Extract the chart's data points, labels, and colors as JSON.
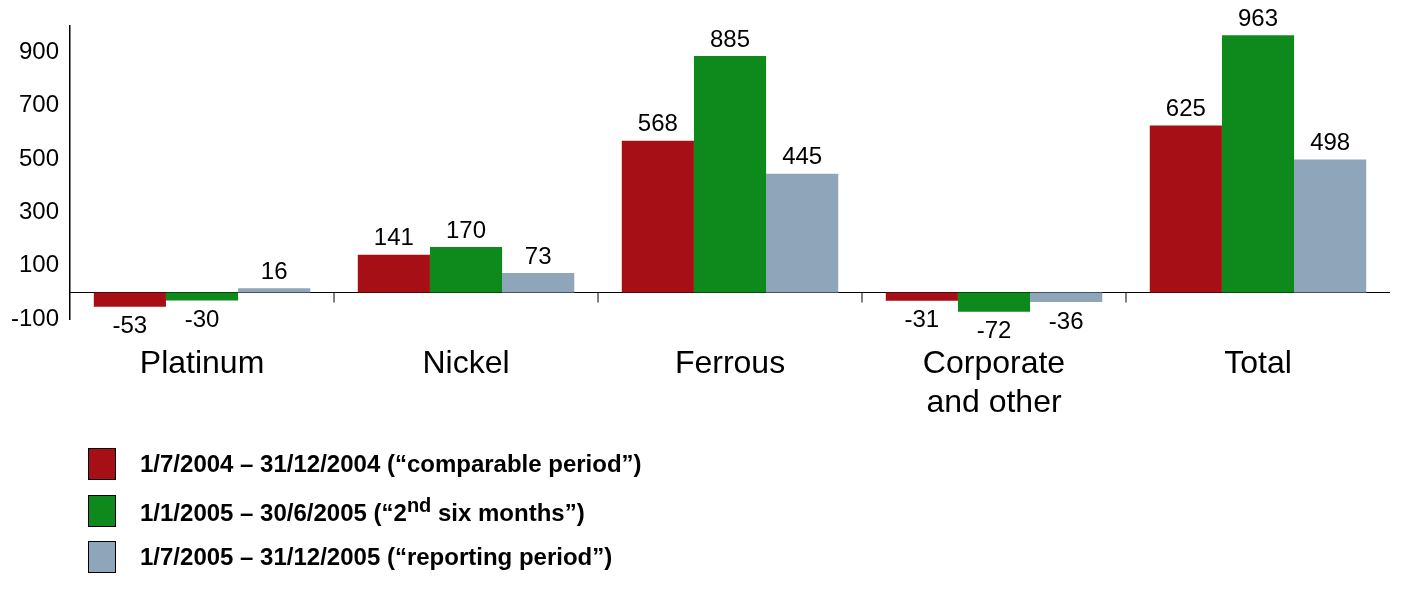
{
  "chart_data": {
    "type": "bar",
    "categories": [
      "Platinum",
      "Nickel",
      "Ferrous",
      "Corporate and other",
      "Total"
    ],
    "series": [
      {
        "name": "1/7/2004 – 31/12/2004 (“comparable period”)",
        "color": "#a50f15",
        "values": [
          -53,
          141,
          568,
          -31,
          625
        ]
      },
      {
        "name": "1/1/2005 – 30/6/2005 (“2$^{nd}$ six months”)",
        "color": "#0e8a1c",
        "values": [
          -30,
          170,
          885,
          -72,
          963
        ]
      },
      {
        "name": "1/7/2005 – 31/12/2005 (“reporting period”)",
        "color": "#8fa6ba",
        "values": [
          16,
          73,
          445,
          -36,
          498
        ]
      }
    ],
    "ylim": [
      -100,
      1000
    ],
    "yticks": [
      -100,
      100,
      300,
      500,
      700,
      900
    ],
    "grid": false,
    "legend": "bottom left",
    "data_labels": true
  }
}
